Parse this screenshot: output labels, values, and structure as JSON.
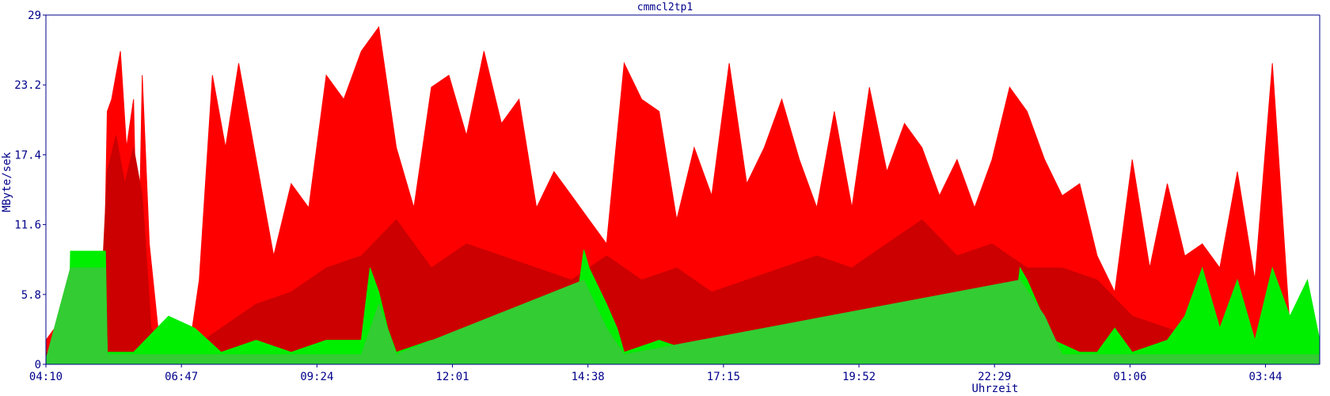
{
  "chart_data": {
    "type": "area",
    "title": "cmmcl2tp1",
    "xlabel": "Uhrzeit",
    "ylabel": "MByte/sek",
    "ylim": [
      0,
      29
    ],
    "y_ticks": [
      0,
      5.8,
      11.6,
      17.4,
      23.2,
      29
    ],
    "y_tick_labels": [
      "0",
      "5.8",
      "11.6",
      "17.4",
      "23.2",
      "29"
    ],
    "x_tick_labels": [
      "04:10",
      "06:47",
      "09:24",
      "12:01",
      "14:38",
      "17:15",
      "19:52",
      "22:29",
      "01:06",
      "03:44"
    ],
    "xlim_minutes": [
      0,
      1454
    ],
    "grid": false,
    "legend": "none",
    "colors": {
      "text": "#00008b",
      "axis": "#00008b",
      "series_max_red": "#ff0000",
      "series_avg_red": "#cc0000",
      "series_max_green": "#00ee00",
      "series_avg_green": "#33cc33"
    },
    "series": [
      {
        "color": "#ff0000",
        "x_minutes": [
          0,
          20,
          30,
          45,
          60,
          65,
          70,
          75,
          80,
          85,
          92,
          100,
          105,
          110,
          118,
          128,
          160,
          167,
          175,
          190,
          205,
          220,
          240,
          260,
          280,
          300,
          320,
          340,
          360,
          380,
          400,
          420,
          440,
          460,
          480,
          500,
          520,
          540,
          560,
          580,
          600,
          620,
          640,
          660,
          680,
          700,
          720,
          740,
          760,
          780,
          800,
          820,
          840,
          860,
          880,
          900,
          920,
          940,
          960,
          980,
          1000,
          1020,
          1040,
          1060,
          1080,
          1100,
          1120,
          1140,
          1160,
          1180,
          1200,
          1220,
          1240,
          1260,
          1280,
          1300,
          1320,
          1340,
          1360,
          1380,
          1400,
          1420,
          1440,
          1454
        ],
        "values": [
          2,
          4,
          3,
          2,
          2,
          1,
          21,
          22,
          24,
          26,
          18,
          22,
          5,
          24,
          10,
          3,
          2,
          3,
          7,
          24,
          18,
          25,
          17,
          9,
          15,
          13,
          24,
          22,
          26,
          28,
          18,
          13,
          23,
          24,
          19,
          26,
          20,
          22,
          13,
          16,
          14,
          12,
          10,
          25,
          22,
          21,
          12,
          18,
          14,
          25,
          15,
          18,
          22,
          17,
          13,
          21,
          13,
          23,
          16,
          20,
          18,
          14,
          17,
          13,
          17,
          23,
          21,
          17,
          14,
          15,
          9,
          6,
          17,
          8,
          15,
          9,
          10,
          8,
          16,
          7,
          25,
          3,
          2,
          1
        ]
      },
      {
        "color": "#cc0000",
        "x_minutes": [
          0,
          30,
          60,
          70,
          80,
          90,
          100,
          110,
          120,
          140,
          160,
          200,
          240,
          280,
          320,
          360,
          400,
          440,
          480,
          520,
          560,
          600,
          640,
          680,
          720,
          760,
          800,
          840,
          880,
          920,
          960,
          1000,
          1040,
          1080,
          1120,
          1160,
          1200,
          1240,
          1280,
          1320,
          1360,
          1400,
          1454
        ],
        "values": [
          1,
          1,
          1,
          16,
          19,
          15,
          18,
          14,
          3,
          1,
          1,
          3,
          5,
          6,
          8,
          9,
          12,
          8,
          10,
          9,
          8,
          7,
          9,
          7,
          8,
          6,
          7,
          8,
          9,
          8,
          10,
          12,
          9,
          10,
          8,
          8,
          7,
          4,
          3,
          2,
          2,
          1,
          1
        ]
      },
      {
        "color": "#00ee00",
        "x_minutes": [
          0,
          26,
          28,
          68,
          70,
          100,
          140,
          170,
          200,
          240,
          280,
          320,
          360,
          370,
          380,
          390,
          400,
          440,
          480,
          520,
          560,
          600,
          614,
          620,
          640,
          652,
          660,
          700,
          740,
          780,
          820,
          860,
          880,
          900,
          940,
          980,
          1000,
          1040,
          1100,
          1112,
          1120,
          1150,
          1180,
          1200,
          1220,
          1240,
          1280,
          1300,
          1320,
          1340,
          1360,
          1380,
          1400,
          1420,
          1440,
          1454
        ],
        "values": [
          0.5,
          0.5,
          9.4,
          9.4,
          1,
          1,
          4,
          3,
          1,
          2,
          1,
          2,
          2,
          8,
          6,
          3,
          1,
          2,
          1,
          2,
          1,
          2,
          9.5,
          8,
          5,
          3,
          1,
          2,
          1,
          2,
          1,
          2,
          3,
          1,
          2,
          1,
          3,
          1,
          1,
          8,
          7,
          2,
          1,
          1,
          3,
          1,
          2,
          4,
          8,
          3,
          7,
          2,
          8,
          4,
          7,
          2
        ]
      },
      {
        "color": "#33cc33",
        "x_minutes": [
          0,
          28,
          68,
          70,
          140,
          360,
          380,
          400,
          614,
          640,
          660,
          1112,
          1140,
          1160,
          1454
        ],
        "values": [
          0.4,
          8,
          8,
          0.8,
          0.8,
          0.8,
          5,
          0.8,
          7,
          3,
          0.8,
          7,
          4,
          0.8,
          0.8
        ]
      }
    ]
  }
}
